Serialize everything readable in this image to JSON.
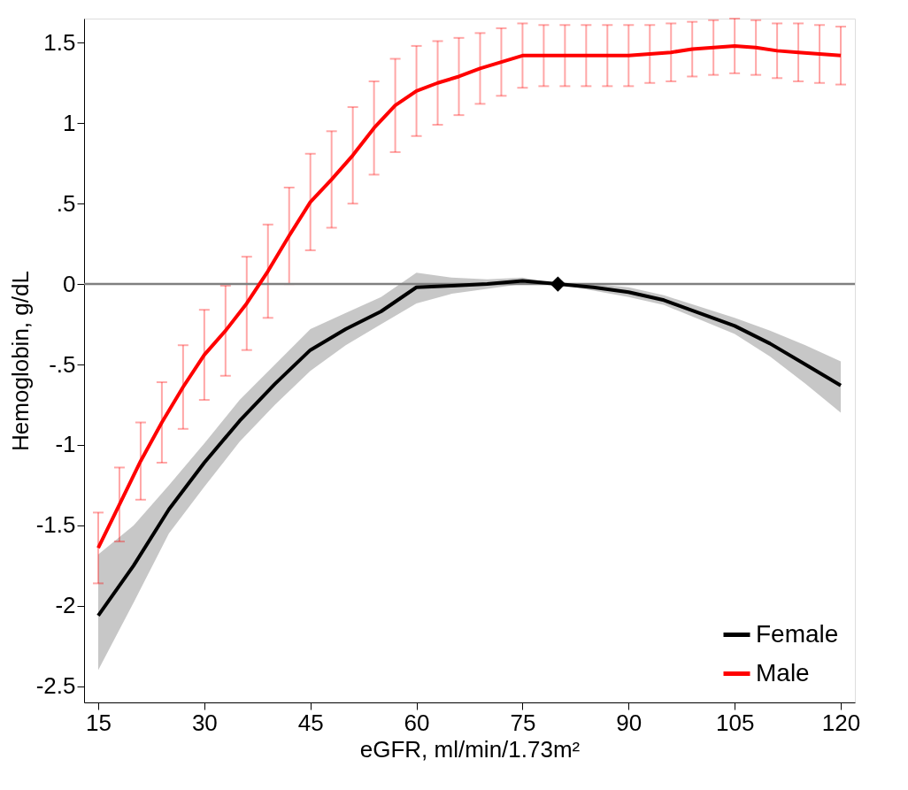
{
  "chart_data": {
    "type": "line",
    "xlabel": "eGFR, ml/min/1.73m²",
    "ylabel": "Hemoglobin, g/dL",
    "xlim": [
      13,
      122
    ],
    "ylim": [
      -2.6,
      1.65
    ],
    "xticks": [
      15,
      30,
      45,
      60,
      75,
      90,
      105,
      120
    ],
    "yticks": [
      -2.5,
      -2,
      -1.5,
      -1,
      {
        "value": -0.5,
        "label": "-.5"
      },
      0,
      {
        "value": 0.5,
        "label": ".5"
      },
      1,
      1.5
    ],
    "grid": false,
    "legend": "bottom right",
    "line_style": "solid",
    "marker": "none",
    "ref_lines": [
      {
        "axis": "y",
        "value": 0,
        "color": "#808080"
      }
    ],
    "series": [
      {
        "name": "Female",
        "color": "#000000",
        "x": [
          15,
          20,
          25,
          30,
          35,
          40,
          45,
          50,
          55,
          60,
          65,
          70,
          75,
          80,
          85,
          90,
          95,
          100,
          105,
          110,
          115,
          120
        ],
        "values": [
          -2.06,
          -1.75,
          -1.4,
          -1.11,
          -0.85,
          -0.62,
          -0.41,
          -0.28,
          -0.17,
          -0.02,
          -0.01,
          0.0,
          0.02,
          0.0,
          -0.02,
          -0.05,
          -0.1,
          -0.18,
          -0.26,
          -0.37,
          -0.5,
          -0.63
        ],
        "lower": [
          -2.4,
          -1.98,
          -1.55,
          -1.26,
          -0.98,
          -0.75,
          -0.54,
          -0.38,
          -0.25,
          -0.12,
          -0.06,
          -0.03,
          0.0,
          0.0,
          -0.04,
          -0.08,
          -0.13,
          -0.22,
          -0.31,
          -0.45,
          -0.62,
          -0.8
        ],
        "upper": [
          -1.68,
          -1.5,
          -1.25,
          -0.99,
          -0.72,
          -0.5,
          -0.28,
          -0.18,
          -0.08,
          0.07,
          0.04,
          0.03,
          0.04,
          0.0,
          0.0,
          -0.02,
          -0.07,
          -0.14,
          -0.21,
          -0.29,
          -0.38,
          -0.48
        ]
      },
      {
        "name": "Male",
        "color": "#ff0000",
        "x": [
          15,
          18,
          21,
          24,
          27,
          30,
          33,
          36,
          39,
          42,
          45,
          48,
          51,
          54,
          57,
          60,
          63,
          66,
          69,
          72,
          75,
          78,
          81,
          84,
          87,
          90,
          93,
          96,
          99,
          102,
          105,
          108,
          111,
          114,
          117,
          120
        ],
        "values": [
          -1.64,
          -1.37,
          -1.1,
          -0.86,
          -0.64,
          -0.44,
          -0.29,
          -0.12,
          0.08,
          0.3,
          0.51,
          0.65,
          0.8,
          0.97,
          1.11,
          1.2,
          1.25,
          1.29,
          1.34,
          1.38,
          1.42,
          1.42,
          1.42,
          1.42,
          1.42,
          1.42,
          1.43,
          1.44,
          1.46,
          1.47,
          1.48,
          1.47,
          1.45,
          1.44,
          1.43,
          1.42
        ],
        "errors": [
          0.22,
          0.23,
          0.24,
          0.25,
          0.26,
          0.28,
          0.28,
          0.29,
          0.29,
          0.3,
          0.3,
          0.3,
          0.3,
          0.29,
          0.29,
          0.28,
          0.26,
          0.24,
          0.22,
          0.21,
          0.2,
          0.19,
          0.19,
          0.19,
          0.19,
          0.19,
          0.18,
          0.18,
          0.17,
          0.17,
          0.17,
          0.17,
          0.17,
          0.18,
          0.18,
          0.18
        ]
      },
      {
        "type": "scatter",
        "color": "#000000",
        "marker": "diamond",
        "x": [
          80
        ],
        "values": [
          0
        ]
      }
    ]
  }
}
